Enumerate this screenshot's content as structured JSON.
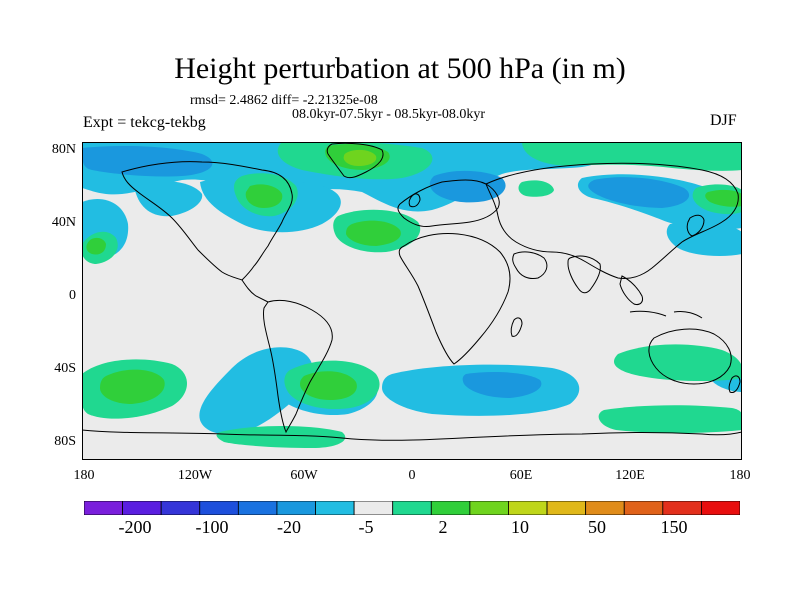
{
  "title": "Height perturbation at 500 hPa (in m)",
  "stats": "rmsd= 2.4862 diff= -2.21325e-08",
  "period": "08.0kyr-07.5kyr - 08.5kyr-08.0kyr",
  "experiment": "Expt = tekcg-tekbg",
  "season": "DJF",
  "lat_labels": [
    "80N",
    "40N",
    "0",
    "40S",
    "80S"
  ],
  "lon_labels": [
    "180",
    "120W",
    "60W",
    "0",
    "60E",
    "120E",
    "180"
  ],
  "colorbar": {
    "labels": [
      "-200",
      "-100",
      "-20",
      "-5",
      "2",
      "10",
      "50",
      "150"
    ],
    "colors": [
      "#7a1fdc",
      "#5a1ee0",
      "#3535d8",
      "#1d4fdc",
      "#1a72e0",
      "#1a98de",
      "#22bde2",
      "#ebebeb",
      "#20d890",
      "#30cf3a",
      "#6fd41e",
      "#bfd61a",
      "#e0b81a",
      "#e08c1a",
      "#e0621a",
      "#e3301c",
      "#e80e0e"
    ]
  },
  "field_colors": {
    "neg_strong": "#1a98de",
    "neg": "#22bde2",
    "neutral": "#ebebeb",
    "pos": "#20d890",
    "pos_strong": "#30cf3a",
    "pos_max": "#6fd41e"
  }
}
